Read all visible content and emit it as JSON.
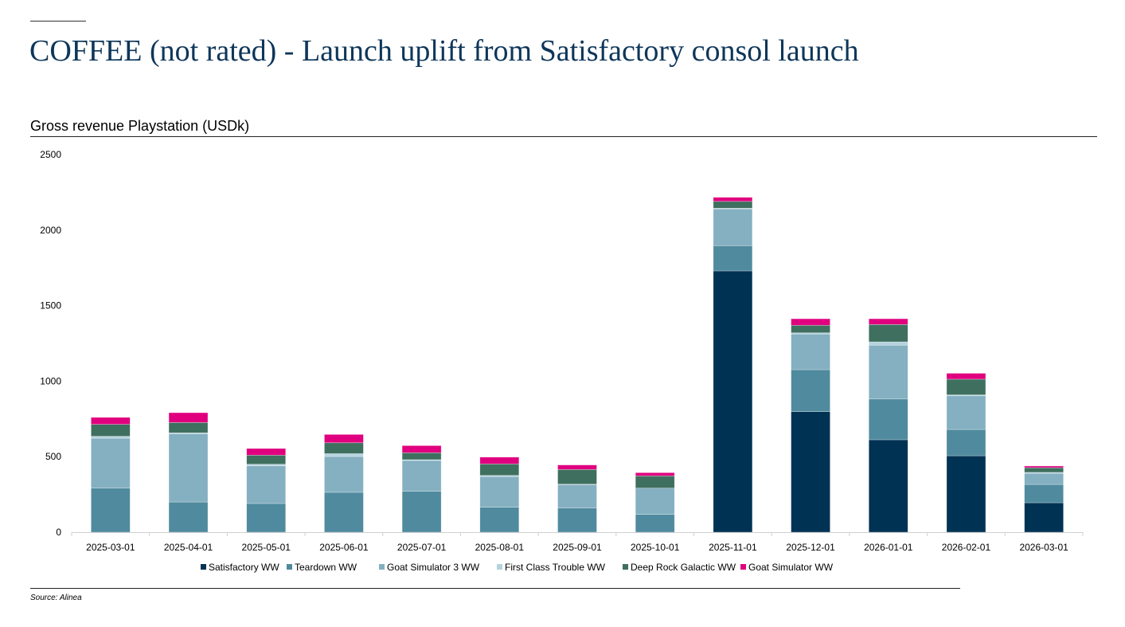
{
  "title": "COFFEE (not rated) - Launch uplift from Satisfactory consol launch",
  "subtitle": "Gross revenue Playstation (USDk)",
  "source": "Source: Alinea",
  "chart_data": {
    "type": "bar",
    "stacked": true,
    "title": "Gross revenue Playstation (USDk)",
    "xlabel": "",
    "ylabel": "",
    "ylim": [
      0,
      2500
    ],
    "yticks": [
      0,
      500,
      1000,
      1500,
      2000,
      2500
    ],
    "grid": false,
    "legend": "bottom",
    "categories": [
      "2025-03-01",
      "2025-04-01",
      "2025-05-01",
      "2025-06-01",
      "2025-07-01",
      "2025-08-01",
      "2025-09-01",
      "2025-10-01",
      "2025-11-01",
      "2025-12-01",
      "2026-01-01",
      "2026-02-01",
      "2026-03-01"
    ],
    "series": [
      {
        "name": "Satisfactory WW",
        "color": "#003254",
        "values": [
          0,
          0,
          0,
          0,
          0,
          0,
          0,
          0,
          1730,
          798,
          612,
          506,
          195
        ]
      },
      {
        "name": "Teardown WW",
        "color": "#508a9e",
        "values": [
          292,
          200,
          190,
          264,
          271,
          165,
          160,
          118,
          167,
          278,
          270,
          174,
          121
        ]
      },
      {
        "name": "Goat Simulator 3 WW",
        "color": "#84b0c1",
        "values": [
          330,
          452,
          249,
          237,
          204,
          203,
          155,
          174,
          243,
          236,
          356,
          223,
          74
        ]
      },
      {
        "name": "First Class Trouble WW",
        "color": "#b5d3df",
        "values": [
          13,
          6,
          11,
          19,
          5,
          8,
          3,
          0,
          5,
          8,
          22,
          6,
          6
        ]
      },
      {
        "name": "Deep Rock Galactic WW",
        "color": "#3f6f5f",
        "values": [
          79,
          68,
          60,
          72,
          46,
          76,
          97,
          81,
          45,
          50,
          115,
          104,
          31
        ]
      },
      {
        "name": "Goat Simulator WW",
        "color": "#e0007f",
        "values": [
          46,
          65,
          44,
          55,
          47,
          45,
          30,
          21,
          27,
          43,
          38,
          39,
          11
        ]
      }
    ]
  }
}
